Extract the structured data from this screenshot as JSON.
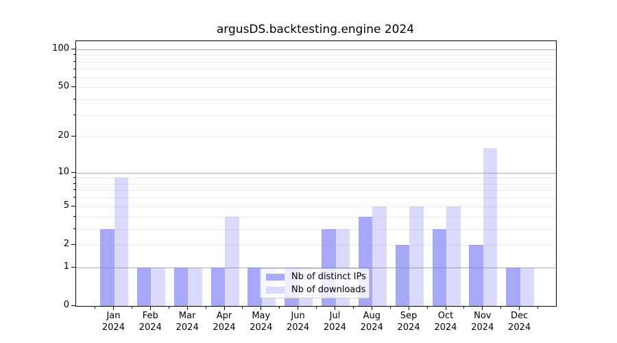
{
  "chart_data": {
    "type": "bar",
    "title": "argusDS.backtesting.engine 2024",
    "categories": [
      "Jan",
      "Feb",
      "Mar",
      "Apr",
      "May",
      "Jun",
      "Jul",
      "Aug",
      "Sep",
      "Oct",
      "Nov",
      "Dec"
    ],
    "year_label": "2024",
    "series": [
      {
        "name": "Nb of distinct IPs",
        "color_solid": "#a8a8f8",
        "color_rgba": "rgba(121,121,245,0.65)",
        "values": [
          3,
          1,
          1,
          1,
          1,
          1,
          3,
          4,
          2,
          3,
          2,
          1
        ]
      },
      {
        "name": "Nb of downloads",
        "color_solid": "#d9d9fa",
        "color_rgba": "rgba(121,121,245,0.28)",
        "values": [
          9,
          1,
          1,
          4,
          1,
          1,
          3,
          5,
          5,
          5,
          16,
          1
        ]
      }
    ],
    "y_scale": "log1p",
    "y_tick_labels": [
      "0",
      "1",
      "2",
      "5",
      "10",
      "20",
      "50",
      "100"
    ],
    "y_ticks": [
      0,
      1,
      2,
      5,
      10,
      20,
      50,
      100
    ],
    "y_decade_gridlines": [
      1,
      10,
      100
    ],
    "y_light_gridlines": [
      2,
      3,
      4,
      5,
      6,
      7,
      8,
      9,
      20,
      30,
      40,
      50,
      60,
      70,
      80,
      90
    ],
    "ylim": [
      0,
      116
    ],
    "grid": "both",
    "legend_position": "lower center"
  },
  "legend": {
    "items": [
      {
        "label": "Nb of distinct IPs",
        "color": "#a8a8f8"
      },
      {
        "label": "Nb of downloads",
        "color": "#d9d9fa"
      }
    ]
  }
}
